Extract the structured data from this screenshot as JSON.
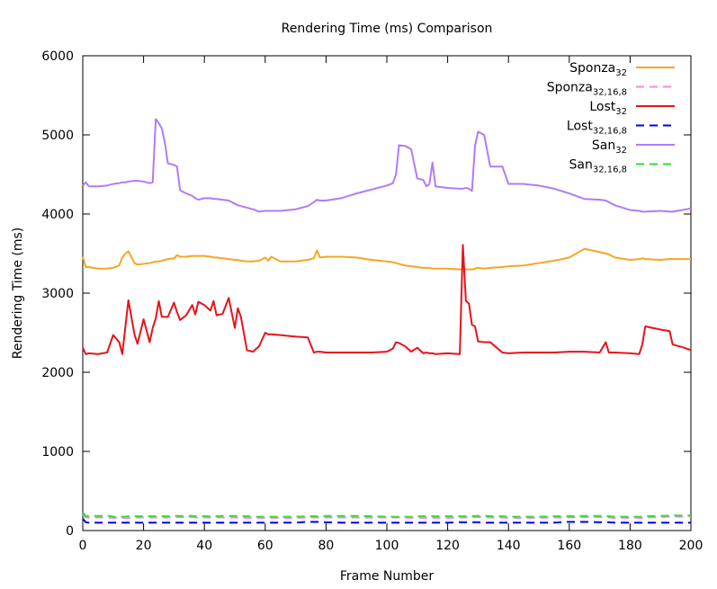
{
  "chart_data": {
    "type": "line",
    "title": "Rendering Time (ms) Comparison",
    "x_label": "Frame Number",
    "y_label": "Rendering Time (ms)",
    "xlim": [
      0,
      200
    ],
    "ylim": [
      0,
      6000
    ],
    "xticks": [
      0,
      20,
      40,
      60,
      80,
      100,
      120,
      140,
      160,
      180,
      200
    ],
    "yticks": [
      0,
      1000,
      2000,
      3000,
      4000,
      5000,
      6000
    ],
    "grid": false,
    "legend": "top-right",
    "x": [
      0,
      1,
      2,
      5,
      8,
      10,
      12,
      13,
      14,
      15,
      17,
      18,
      20,
      22,
      23,
      24,
      25,
      26,
      27,
      28,
      30,
      31,
      32,
      34,
      36,
      37,
      38,
      40,
      42,
      43,
      44,
      46,
      48,
      50,
      51,
      52,
      54,
      56,
      58,
      60,
      61,
      62,
      65,
      70,
      74,
      76,
      77,
      78,
      80,
      85,
      90,
      95,
      100,
      102,
      103,
      104,
      106,
      108,
      110,
      112,
      113,
      114,
      115,
      116,
      120,
      124,
      125,
      126,
      127,
      128,
      129,
      130,
      132,
      134,
      138,
      140,
      145,
      150,
      155,
      160,
      165,
      170,
      172,
      173,
      175,
      180,
      183,
      184,
      185,
      190,
      193,
      194,
      197,
      200
    ],
    "series": [
      {
        "name": "Sponza",
        "subscript": "32",
        "color": "#f5a623",
        "dash": false,
        "values": [
          3460,
          3330,
          3330,
          3310,
          3310,
          3320,
          3350,
          3450,
          3500,
          3530,
          3380,
          3360,
          3370,
          3380,
          3390,
          3400,
          3400,
          3410,
          3420,
          3430,
          3440,
          3480,
          3460,
          3460,
          3470,
          3470,
          3470,
          3470,
          3460,
          3450,
          3450,
          3440,
          3430,
          3420,
          3420,
          3410,
          3400,
          3400,
          3410,
          3450,
          3410,
          3460,
          3400,
          3400,
          3420,
          3440,
          3540,
          3450,
          3460,
          3460,
          3450,
          3420,
          3400,
          3390,
          3380,
          3370,
          3350,
          3340,
          3330,
          3320,
          3320,
          3320,
          3310,
          3310,
          3310,
          3300,
          3300,
          3300,
          3300,
          3300,
          3310,
          3320,
          3310,
          3320,
          3330,
          3340,
          3350,
          3380,
          3410,
          3450,
          3560,
          3520,
          3500,
          3490,
          3450,
          3420,
          3430,
          3440,
          3430,
          3420,
          3430,
          3430,
          3430,
          3430
        ]
      },
      {
        "name": "Sponza",
        "subscript": "32,16,8",
        "color": "#ee88ee",
        "dash": true,
        "values": [
          200,
          165,
          165,
          165,
          165,
          160,
          160,
          160,
          160,
          160,
          165,
          165,
          165,
          165,
          165,
          165,
          165,
          165,
          165,
          165,
          170,
          170,
          170,
          170,
          170,
          165,
          165,
          165,
          165,
          165,
          165,
          165,
          165,
          165,
          165,
          160,
          160,
          160,
          160,
          160,
          160,
          160,
          160,
          160,
          165,
          165,
          165,
          165,
          165,
          165,
          165,
          165,
          165,
          165,
          165,
          165,
          165,
          160,
          160,
          160,
          160,
          160,
          160,
          160,
          160,
          165,
          165,
          165,
          165,
          165,
          170,
          170,
          170,
          165,
          165,
          160,
          160,
          160,
          165,
          165,
          170,
          170,
          165,
          165,
          160,
          160,
          160,
          160,
          165,
          170,
          175,
          175,
          175,
          175
        ]
      },
      {
        "name": "Lost",
        "subscript": "32",
        "color": "#e8121a",
        "dash": false,
        "values": [
          2310,
          2230,
          2240,
          2230,
          2250,
          2470,
          2380,
          2230,
          2570,
          2910,
          2480,
          2360,
          2670,
          2380,
          2560,
          2680,
          2900,
          2700,
          2700,
          2700,
          2880,
          2760,
          2660,
          2720,
          2850,
          2730,
          2890,
          2850,
          2780,
          2900,
          2720,
          2740,
          2940,
          2560,
          2810,
          2700,
          2280,
          2260,
          2330,
          2500,
          2480,
          2480,
          2470,
          2450,
          2440,
          2250,
          2260,
          2260,
          2250,
          2250,
          2250,
          2250,
          2260,
          2300,
          2380,
          2370,
          2330,
          2260,
          2310,
          2240,
          2250,
          2240,
          2240,
          2230,
          2240,
          2230,
          3610,
          2900,
          2870,
          2600,
          2580,
          2390,
          2380,
          2380,
          2250,
          2240,
          2250,
          2250,
          2250,
          2260,
          2260,
          2250,
          2380,
          2250,
          2250,
          2240,
          2230,
          2350,
          2580,
          2540,
          2520,
          2350,
          2320,
          2280
        ]
      },
      {
        "name": "Lost",
        "subscript": "32,16,8",
        "color": "#0000ee",
        "dash": true,
        "values": [
          150,
          105,
          100,
          100,
          100,
          100,
          100,
          100,
          100,
          100,
          100,
          100,
          100,
          100,
          100,
          100,
          100,
          100,
          100,
          100,
          100,
          100,
          100,
          100,
          100,
          100,
          100,
          100,
          100,
          100,
          100,
          100,
          100,
          100,
          100,
          100,
          100,
          100,
          100,
          100,
          100,
          100,
          100,
          100,
          110,
          110,
          110,
          110,
          105,
          100,
          100,
          100,
          100,
          100,
          100,
          100,
          100,
          100,
          100,
          100,
          100,
          100,
          100,
          100,
          100,
          105,
          105,
          105,
          105,
          105,
          105,
          105,
          100,
          100,
          100,
          100,
          100,
          100,
          100,
          110,
          110,
          105,
          105,
          105,
          100,
          100,
          100,
          100,
          100,
          100,
          100,
          100,
          100,
          100
        ]
      },
      {
        "name": "San",
        "subscript": "32",
        "color": "#b07cf7",
        "dash": false,
        "values": [
          4360,
          4400,
          4350,
          4350,
          4360,
          4380,
          4390,
          4400,
          4400,
          4410,
          4420,
          4420,
          4410,
          4390,
          4400,
          5200,
          5150,
          5080,
          4900,
          4640,
          4620,
          4600,
          4300,
          4260,
          4230,
          4200,
          4180,
          4200,
          4200,
          4190,
          4190,
          4180,
          4170,
          4130,
          4110,
          4100,
          4080,
          4060,
          4030,
          4040,
          4040,
          4040,
          4040,
          4060,
          4100,
          4150,
          4180,
          4170,
          4170,
          4200,
          4260,
          4310,
          4360,
          4390,
          4500,
          4870,
          4860,
          4820,
          4450,
          4430,
          4350,
          4380,
          4650,
          4350,
          4330,
          4320,
          4320,
          4330,
          4320,
          4290,
          4860,
          5040,
          5000,
          4600,
          4600,
          4380,
          4380,
          4360,
          4320,
          4260,
          4190,
          4180,
          4170,
          4150,
          4110,
          4050,
          4040,
          4030,
          4030,
          4040,
          4030,
          4030,
          4050,
          4070
        ]
      },
      {
        "name": "San",
        "subscript": "32,16,8",
        "color": "#33dd33",
        "dash": true,
        "values": [
          230,
          180,
          185,
          185,
          190,
          175,
          175,
          175,
          175,
          180,
          180,
          180,
          180,
          180,
          180,
          180,
          180,
          180,
          180,
          180,
          185,
          185,
          185,
          185,
          185,
          180,
          180,
          180,
          180,
          180,
          180,
          185,
          185,
          185,
          185,
          180,
          180,
          175,
          175,
          175,
          175,
          175,
          175,
          175,
          180,
          180,
          180,
          180,
          185,
          185,
          185,
          180,
          175,
          175,
          175,
          175,
          175,
          175,
          180,
          180,
          180,
          180,
          180,
          180,
          180,
          180,
          180,
          180,
          180,
          180,
          185,
          185,
          185,
          180,
          180,
          175,
          175,
          175,
          180,
          180,
          185,
          185,
          180,
          180,
          175,
          175,
          175,
          175,
          180,
          185,
          190,
          190,
          190,
          190
        ]
      }
    ]
  }
}
